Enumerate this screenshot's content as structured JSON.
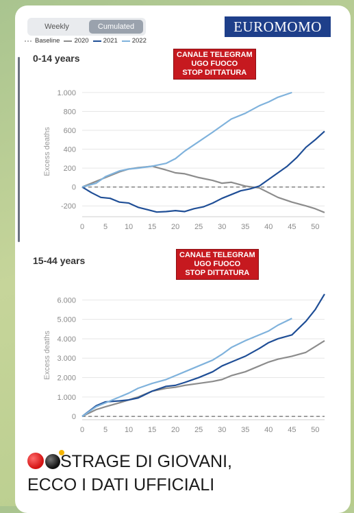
{
  "controls": {
    "weekly_label": "Weekly",
    "cumulated_label": "Cumulated",
    "selected": "Cumulated"
  },
  "brand": "EUROMOMO",
  "legend": [
    {
      "label": "Baseline",
      "color": "#9a9a9a",
      "style": "dotted"
    },
    {
      "label": "2020",
      "color": "#8c8c8c",
      "style": "solid"
    },
    {
      "label": "2021",
      "color": "#1f4e96",
      "style": "solid"
    },
    {
      "label": "2022",
      "color": "#7fb2dc",
      "style": "solid"
    }
  ],
  "stamp": {
    "line1": "CANALE TELEGRAM",
    "line2": "UGO FUOCO",
    "line3": "STOP DITTATURA"
  },
  "caption": {
    "line1": "STRAGE DI GIOVANI,",
    "line2": "ECCO I DATI UFFICIALI"
  },
  "chart_data": [
    {
      "type": "line",
      "title": "0-14 years",
      "ylabel": "Excess deaths",
      "ylim": [
        -300,
        1050
      ],
      "yticks": [
        -200,
        0,
        200,
        400,
        600,
        800,
        1000
      ],
      "ytick_labels": [
        "-200",
        "0",
        "200",
        "400",
        "600",
        "800",
        "1.000"
      ],
      "xlim": [
        0,
        52
      ],
      "xticks": [
        0,
        5,
        10,
        15,
        20,
        25,
        30,
        35,
        40,
        45,
        50
      ],
      "baseline": 0,
      "series": [
        {
          "name": "2020",
          "color": "#8c8c8c",
          "x": [
            0,
            5,
            8,
            10,
            12,
            14,
            15,
            18,
            20,
            22,
            25,
            28,
            30,
            32,
            35,
            38,
            40,
            42,
            45,
            48,
            50,
            52
          ],
          "y": [
            0,
            100,
            160,
            190,
            205,
            215,
            220,
            180,
            150,
            140,
            100,
            70,
            40,
            50,
            10,
            -10,
            -60,
            -110,
            -160,
            -200,
            -230,
            -270
          ]
        },
        {
          "name": "2021",
          "color": "#1f4e96",
          "x": [
            0,
            2,
            4,
            6,
            8,
            10,
            12,
            14,
            16,
            18,
            20,
            22,
            24,
            26,
            28,
            30,
            32,
            34,
            36,
            38,
            40,
            42,
            44,
            46,
            48,
            50,
            52
          ],
          "y": [
            0,
            -60,
            -110,
            -120,
            -160,
            -170,
            -215,
            -240,
            -265,
            -260,
            -250,
            -260,
            -230,
            -210,
            -170,
            -120,
            -80,
            -40,
            -20,
            10,
            80,
            150,
            220,
            310,
            420,
            500,
            590
          ]
        },
        {
          "name": "2022",
          "color": "#7fb2dc",
          "x": [
            0,
            3,
            5,
            8,
            10,
            12,
            15,
            18,
            20,
            22,
            25,
            28,
            30,
            32,
            35,
            38,
            40,
            42,
            45
          ],
          "y": [
            0,
            40,
            110,
            170,
            190,
            200,
            220,
            250,
            300,
            380,
            480,
            580,
            650,
            720,
            780,
            860,
            900,
            950,
            1000
          ]
        }
      ]
    },
    {
      "type": "line",
      "title": "15-44 years",
      "ylabel": "Excess deaths",
      "ylim": [
        -100,
        6400
      ],
      "yticks": [
        0,
        1000,
        2000,
        3000,
        4000,
        5000,
        6000
      ],
      "ytick_labels": [
        "0",
        "1.000",
        "2.000",
        "3.000",
        "4.000",
        "5.000",
        "6.000"
      ],
      "xlim": [
        0,
        52
      ],
      "xticks": [
        0,
        5,
        10,
        15,
        20,
        25,
        30,
        35,
        40,
        45,
        50
      ],
      "baseline": 0,
      "series": [
        {
          "name": "2020",
          "color": "#8c8c8c",
          "x": [
            0,
            3,
            5,
            8,
            10,
            12,
            15,
            18,
            20,
            22,
            25,
            28,
            30,
            32,
            35,
            38,
            40,
            42,
            45,
            48,
            50,
            52
          ],
          "y": [
            0,
            350,
            500,
            700,
            850,
            1000,
            1300,
            1450,
            1500,
            1600,
            1700,
            1800,
            1900,
            2100,
            2300,
            2600,
            2800,
            2950,
            3100,
            3300,
            3600,
            3900
          ]
        },
        {
          "name": "2021",
          "color": "#1f4e96",
          "x": [
            0,
            3,
            5,
            8,
            10,
            12,
            15,
            18,
            20,
            22,
            25,
            28,
            30,
            32,
            35,
            38,
            40,
            42,
            45,
            48,
            50,
            52
          ],
          "y": [
            0,
            550,
            750,
            800,
            850,
            950,
            1300,
            1550,
            1600,
            1750,
            2000,
            2300,
            2600,
            2800,
            3100,
            3500,
            3800,
            4000,
            4200,
            4900,
            5500,
            6300
          ]
        },
        {
          "name": "2022",
          "color": "#7fb2dc",
          "x": [
            0,
            3,
            5,
            8,
            10,
            12,
            15,
            18,
            20,
            22,
            25,
            28,
            30,
            32,
            35,
            38,
            40,
            42,
            45
          ],
          "y": [
            0,
            500,
            700,
            1000,
            1200,
            1450,
            1700,
            1900,
            2100,
            2300,
            2600,
            2900,
            3200,
            3550,
            3900,
            4200,
            4400,
            4700,
            5050
          ]
        }
      ]
    }
  ]
}
